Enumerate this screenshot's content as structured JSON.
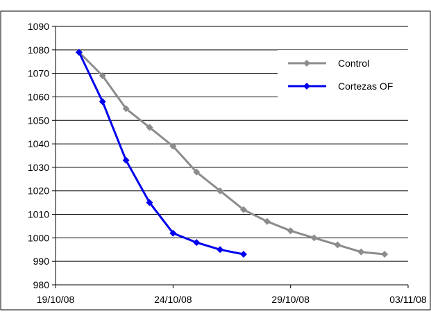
{
  "chart_data": {
    "type": "line",
    "title": "",
    "xlabel": "",
    "ylabel": "",
    "x_axis_type": "date",
    "xlim": [
      "2008-10-19",
      "2008-11-03"
    ],
    "ylim": [
      980,
      1090
    ],
    "x_tick_labels": [
      "19/10/08",
      "24/10/08",
      "29/10/08",
      "03/11/08"
    ],
    "x_tick_dates": [
      "2008-10-19",
      "2008-10-24",
      "2008-10-29",
      "2008-11-03"
    ],
    "y_ticks": [
      980,
      990,
      1000,
      1010,
      1020,
      1030,
      1040,
      1050,
      1060,
      1070,
      1080,
      1090
    ],
    "grid": "horizontal",
    "legend_position": "top-right",
    "series": [
      {
        "name": "Control",
        "color": "#8c8c8c",
        "marker": "diamond",
        "points": [
          {
            "x": "2008-10-20",
            "y": 1079
          },
          {
            "x": "2008-10-21",
            "y": 1069
          },
          {
            "x": "2008-10-22",
            "y": 1055
          },
          {
            "x": "2008-10-23",
            "y": 1047
          },
          {
            "x": "2008-10-24",
            "y": 1039
          },
          {
            "x": "2008-10-25",
            "y": 1028
          },
          {
            "x": "2008-10-26",
            "y": 1020
          },
          {
            "x": "2008-10-27",
            "y": 1012
          },
          {
            "x": "2008-10-28",
            "y": 1007
          },
          {
            "x": "2008-10-29",
            "y": 1003
          },
          {
            "x": "2008-10-30",
            "y": 1000
          },
          {
            "x": "2008-10-31",
            "y": 997
          },
          {
            "x": "2008-11-01",
            "y": 994
          },
          {
            "x": "2008-11-02",
            "y": 993
          }
        ]
      },
      {
        "name": "Cortezas OF",
        "color": "#0000ee",
        "marker": "diamond",
        "points": [
          {
            "x": "2008-10-20",
            "y": 1079
          },
          {
            "x": "2008-10-21",
            "y": 1058
          },
          {
            "x": "2008-10-22",
            "y": 1033
          },
          {
            "x": "2008-10-23",
            "y": 1015
          },
          {
            "x": "2008-10-24",
            "y": 1002
          },
          {
            "x": "2008-10-25",
            "y": 998
          },
          {
            "x": "2008-10-26",
            "y": 995
          },
          {
            "x": "2008-10-27",
            "y": 993
          }
        ]
      }
    ]
  }
}
